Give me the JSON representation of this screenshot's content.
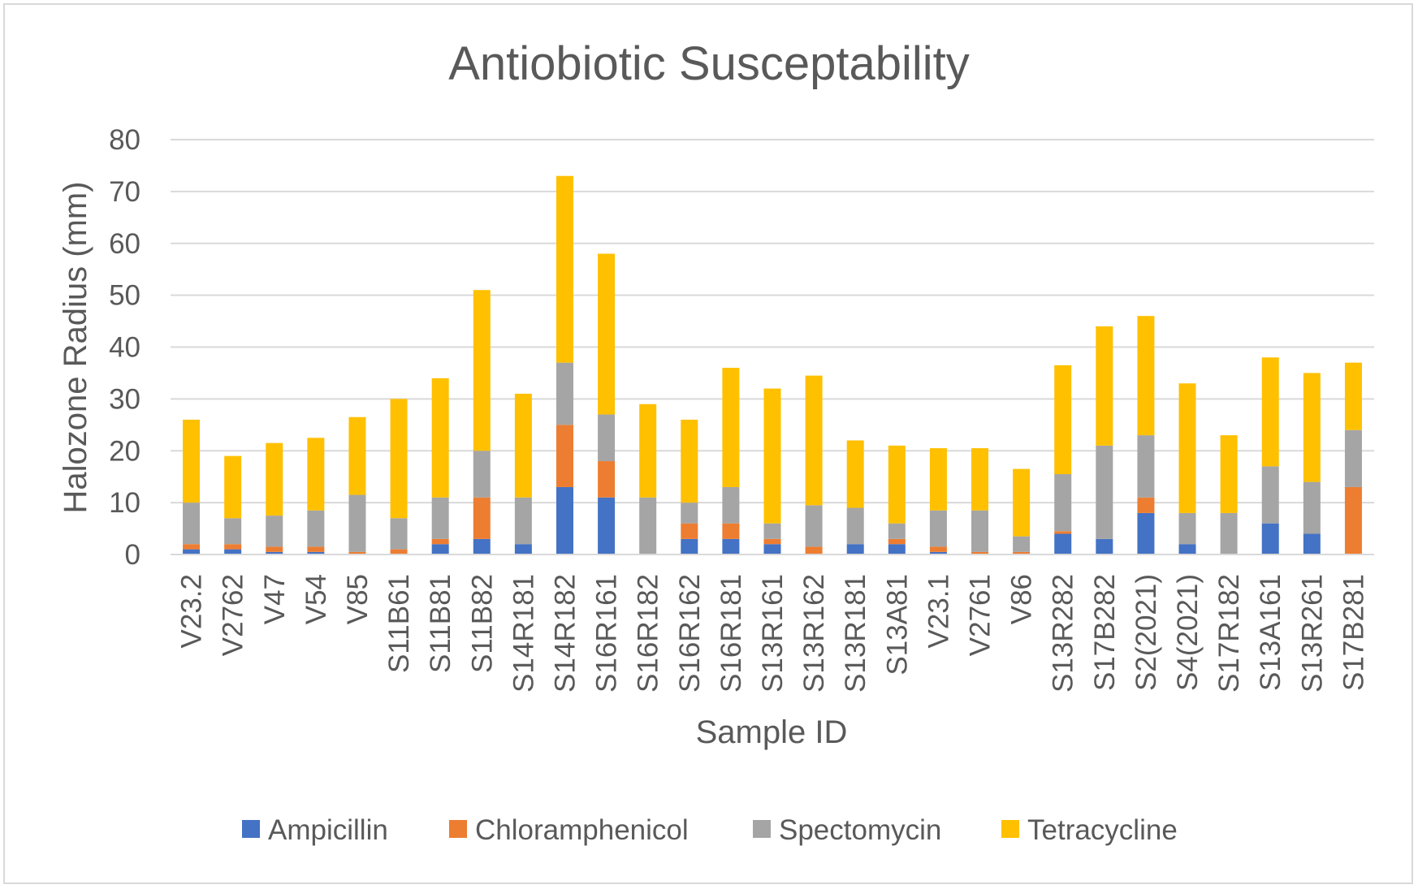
{
  "chart_data": {
    "type": "bar",
    "stacked": true,
    "title": "Antiobiotic Susceptability",
    "xlabel": "Sample ID",
    "ylabel": "Halozone Radius (mm)",
    "ylim": [
      0,
      80
    ],
    "yticks": [
      0,
      10,
      20,
      30,
      40,
      50,
      60,
      70,
      80
    ],
    "grid": true,
    "legend_position": "bottom",
    "categories": [
      "V23.2",
      "V2762",
      "V47",
      "V54",
      "V85",
      "S11B61",
      "S11B81",
      "S11B82",
      "S14R181",
      "S14R182",
      "S16R161",
      "S16R182",
      "S16R162",
      "S16R181",
      "S13R161",
      "S13R162",
      "S13R181",
      "S13A81",
      "V23.1",
      "V2761",
      "V86",
      "S13R282",
      "S17B282",
      "S2(2021)",
      "S4(2021)",
      "S17R182",
      "S13A161",
      "S13R261",
      "S17B281"
    ],
    "series": [
      {
        "name": "Ampicillin",
        "color": "#4472c4",
        "values": [
          1,
          1,
          0.5,
          0.5,
          0,
          0,
          2,
          3,
          2,
          13,
          11,
          0,
          3,
          3,
          2,
          0,
          2,
          2,
          0.5,
          0,
          0,
          4,
          3,
          8,
          2,
          0,
          6,
          4,
          0
        ]
      },
      {
        "name": "Chloramphenicol",
        "color": "#ed7d31",
        "values": [
          1,
          1,
          1,
          1,
          0.5,
          1,
          1,
          8,
          0,
          12,
          7,
          0,
          3,
          3,
          1,
          1.5,
          0,
          1,
          1,
          0.5,
          0.5,
          0.5,
          0,
          3,
          0,
          0,
          0,
          0,
          13
        ]
      },
      {
        "name": "Spectomycin",
        "color": "#a5a5a5",
        "values": [
          8,
          5,
          6,
          7,
          11,
          6,
          8,
          9,
          9,
          12,
          9,
          11,
          4,
          7,
          3,
          8,
          7,
          3,
          7,
          8,
          3,
          11,
          18,
          12,
          6,
          8,
          11,
          10,
          11
        ]
      },
      {
        "name": "Tetracycline",
        "color": "#ffc000",
        "values": [
          16,
          12,
          14,
          14,
          15,
          23,
          23,
          31,
          20,
          36,
          31,
          18,
          16,
          23,
          26,
          25,
          13,
          15,
          12,
          12,
          13,
          21,
          23,
          23,
          25,
          15,
          21,
          21,
          13
        ]
      }
    ]
  }
}
